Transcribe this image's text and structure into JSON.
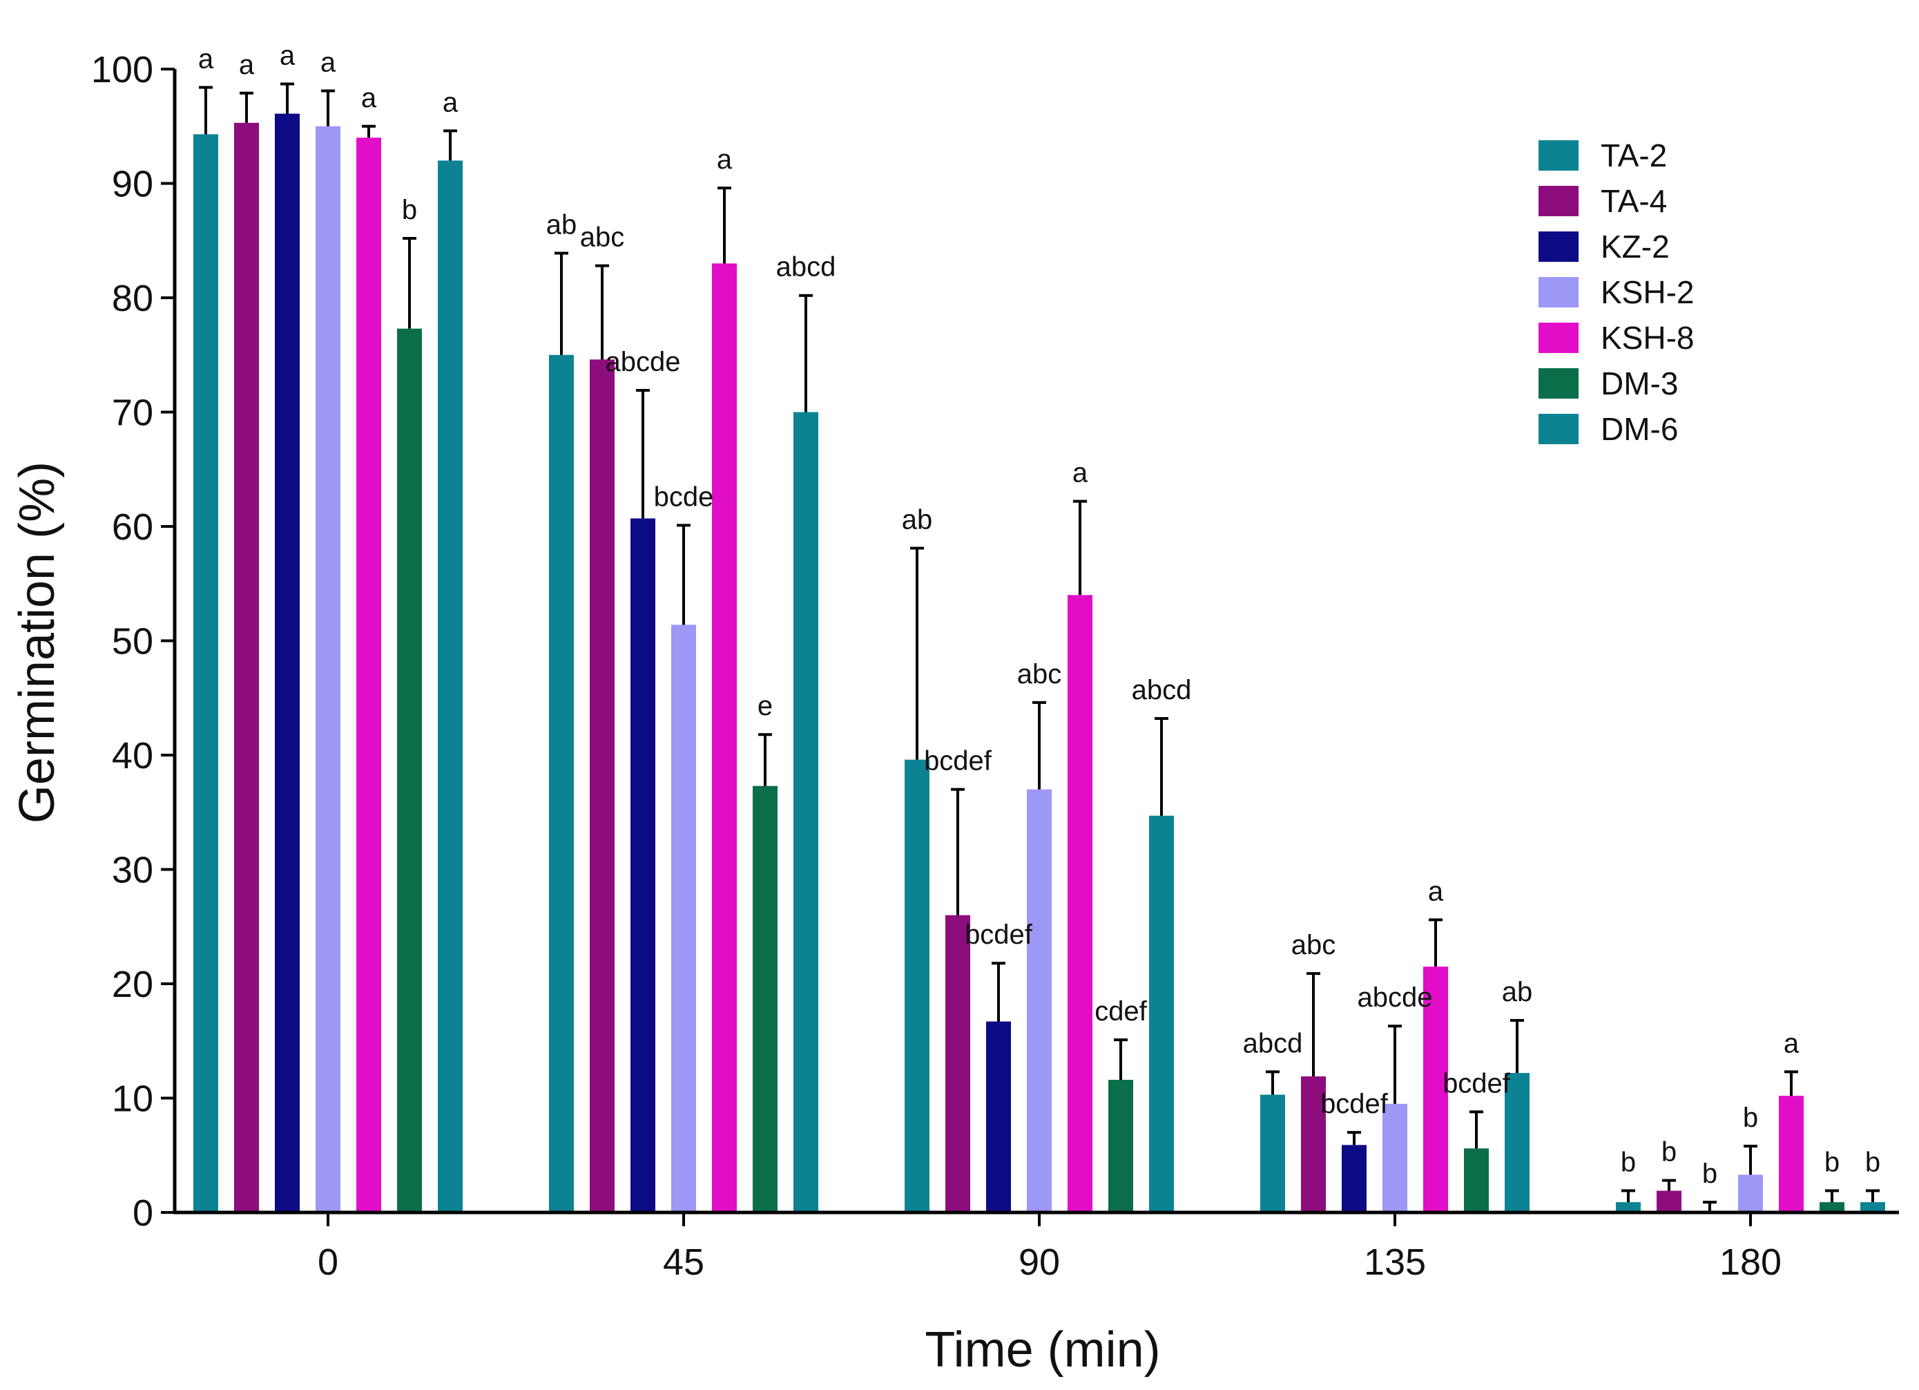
{
  "chart_data": {
    "type": "bar",
    "title": "",
    "xlabel": "Time (min)",
    "ylabel": "Germination (%)",
    "ylim": [
      0,
      100
    ],
    "yticks": [
      "0",
      "10",
      "20",
      "30",
      "40",
      "50",
      "60",
      "70",
      "80",
      "90",
      "100"
    ],
    "categories": [
      "0",
      "45",
      "90",
      "135",
      "180"
    ],
    "legend_position": "top-right",
    "series": [
      {
        "name": "TA-2",
        "color": "#0c8393",
        "values": [
          94.3,
          75.0,
          39.6,
          10.3,
          0.9
        ],
        "errors": [
          4.1,
          8.9,
          18.5,
          2.0,
          1.0
        ],
        "labels": [
          "a",
          "ab",
          "ab",
          "abcd",
          "b"
        ]
      },
      {
        "name": "TA-4",
        "color": "#8e0d7d",
        "values": [
          95.3,
          74.6,
          26.0,
          11.9,
          1.9
        ],
        "errors": [
          2.6,
          8.2,
          11.0,
          9.0,
          0.9
        ],
        "labels": [
          "a",
          "abc",
          "bcdef",
          "abc",
          "b"
        ]
      },
      {
        "name": "KZ-2",
        "color": "#0c0b86",
        "values": [
          96.1,
          60.7,
          16.7,
          5.9,
          0.0
        ],
        "errors": [
          2.6,
          11.2,
          5.1,
          1.1,
          0.9
        ],
        "labels": [
          "a",
          "abcde",
          "bcdef",
          "bcdef",
          "b"
        ]
      },
      {
        "name": "KSH-2",
        "color": "#9d97f5",
        "values": [
          95.0,
          51.4,
          37.0,
          9.5,
          3.3
        ],
        "errors": [
          3.1,
          8.7,
          7.6,
          6.8,
          2.5
        ],
        "labels": [
          "a",
          "bcde",
          "abc",
          "abcde",
          "b"
        ]
      },
      {
        "name": "KSH-8",
        "color": "#e20dc7",
        "values": [
          94.0,
          83.0,
          54.0,
          21.5,
          10.2
        ],
        "errors": [
          1.0,
          6.6,
          8.2,
          4.1,
          2.1
        ],
        "labels": [
          "a",
          "a",
          "a",
          "a",
          "a"
        ]
      },
      {
        "name": "DM-3",
        "color": "#0a6e49",
        "values": [
          77.3,
          37.3,
          11.6,
          5.6,
          0.9
        ],
        "errors": [
          7.9,
          4.5,
          3.5,
          3.2,
          1.0
        ],
        "labels": [
          "b",
          "e",
          "cdef",
          "bcdef",
          "b"
        ]
      },
      {
        "name": "DM-6",
        "color": "#0c8393",
        "values": [
          92.0,
          70.0,
          34.7,
          12.2,
          0.9
        ],
        "errors": [
          2.6,
          10.2,
          8.5,
          4.6,
          1.0
        ],
        "labels": [
          "a",
          "abcd",
          "abcd",
          "ab",
          "b"
        ]
      }
    ]
  }
}
